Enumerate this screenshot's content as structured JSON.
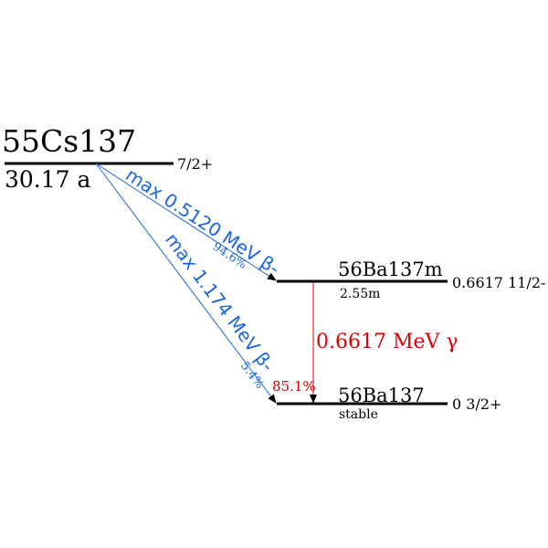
{
  "parent": {
    "nuclide": "55Cs137",
    "half_life": "30.17 a",
    "spin": "7/2+"
  },
  "daughters": [
    {
      "nuclide": "56Ba137m",
      "half_life": "2.55m",
      "energy_spin": "0.6617 11/2-"
    },
    {
      "nuclide": "56Ba137",
      "half_life": "stable",
      "energy_spin": "0 3/2+"
    }
  ],
  "transitions": [
    {
      "label": "max 0.5120 MeV β-",
      "intensity": "94.6%"
    },
    {
      "label": "max 1.174 MeV β-",
      "intensity": "5.4%"
    },
    {
      "label": "0.6617 MeV γ",
      "intensity": "85.1%"
    }
  ],
  "colors": {
    "beta": "#1a66dd",
    "gamma": "#dd0000",
    "level": "#000000"
  }
}
